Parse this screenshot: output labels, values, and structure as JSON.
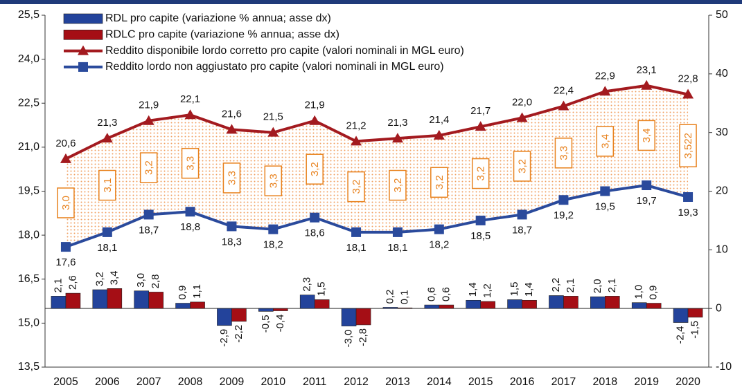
{
  "chart_data": {
    "type": "combo",
    "categories": [
      "2005",
      "2006",
      "2007",
      "2008",
      "2009",
      "2010",
      "2011",
      "2012",
      "2013",
      "2014",
      "2015",
      "2016",
      "2017",
      "2018",
      "2019",
      "2020"
    ],
    "ylim": [
      13.5,
      25.5
    ],
    "yticks": [
      {
        "value": 13.5,
        "label": "13,5"
      },
      {
        "value": 15,
        "label": "15,0"
      },
      {
        "value": 16.5,
        "label": "16,5"
      },
      {
        "value": 18,
        "label": "18,0"
      },
      {
        "value": 19.5,
        "label": "19,5"
      },
      {
        "value": 21,
        "label": "21,0"
      },
      {
        "value": 22.5,
        "label": "22,5"
      },
      {
        "value": 24,
        "label": "24,0"
      },
      {
        "value": 25.5,
        "label": "25,5"
      }
    ],
    "y2lim": [
      -10,
      50
    ],
    "y2ticks": [
      -10,
      0,
      10,
      20,
      30,
      40,
      50
    ],
    "legend": "upper left",
    "series": [
      {
        "name": "RDL pro capite (variazione % annua; asse dx)",
        "type": "bar",
        "axis": "y2",
        "color": "#23439b",
        "values": [
          2.1,
          3.2,
          3.0,
          0.9,
          -2.9,
          -0.5,
          2.3,
          -3.0,
          0.2,
          0.6,
          1.4,
          1.5,
          2.2,
          2.0,
          1.0,
          -2.4
        ],
        "value_labels": [
          "2,1",
          "3,2",
          "3,0",
          "0,9",
          "-2,9",
          "-0,5",
          "2,3",
          "-3,0",
          "0,2",
          "0,6",
          "1,4",
          "1,5",
          "2,2",
          "2,0",
          "1,0",
          "-2,4"
        ]
      },
      {
        "name": "RDLC pro capite (variazione % annua; asse dx)",
        "type": "bar",
        "axis": "y2",
        "color": "#a50e15",
        "values": [
          2.6,
          3.4,
          2.8,
          1.1,
          -2.2,
          -0.4,
          1.5,
          -2.8,
          0.1,
          0.6,
          1.2,
          1.4,
          2.1,
          2.1,
          0.9,
          -1.5
        ],
        "value_labels": [
          "2,6",
          "3,4",
          "2,8",
          "1,1",
          "-2,2",
          "-0,4",
          "1,5",
          "-2,8",
          "0,1",
          "0,6",
          "1,2",
          "1,4",
          "2,1",
          "2,1",
          "0,9",
          "-1,5"
        ]
      },
      {
        "name": "Reddito disponibile lordo corretto pro capite (valori nominali in MGL euro)",
        "type": "line",
        "marker": "triangle",
        "color": "#a31a1f",
        "values": [
          20.6,
          21.3,
          21.9,
          22.1,
          21.6,
          21.5,
          21.9,
          21.2,
          21.3,
          21.4,
          21.7,
          22.0,
          22.4,
          22.9,
          23.1,
          22.8
        ],
        "value_labels": [
          "20,6",
          "21,3",
          "21,9",
          "22,1",
          "21,6",
          "21,5",
          "21,9",
          "21,2",
          "21,3",
          "21,4",
          "21,7",
          "22,0",
          "22,4",
          "22,9",
          "23,1",
          "22,8"
        ]
      },
      {
        "name": "Reddito lordo non aggiustato pro capite (valori nominali in MGL euro)",
        "type": "line",
        "marker": "square",
        "color": "#2a4a9c",
        "values": [
          17.6,
          18.1,
          18.7,
          18.8,
          18.3,
          18.2,
          18.6,
          18.1,
          18.1,
          18.2,
          18.5,
          18.7,
          19.2,
          19.5,
          19.7,
          19.3
        ],
        "value_labels": [
          "17,6",
          "18,1",
          "18,7",
          "18,8",
          "18,3",
          "18,2",
          "18,6",
          "18,1",
          "18,1",
          "18,2",
          "18,5",
          "18,7",
          "19,2",
          "19,5",
          "19,7",
          "19,3"
        ]
      }
    ],
    "gap_values": [
      3.0,
      3.1,
      3.2,
      3.3,
      3.3,
      3.3,
      3.2,
      3.2,
      3.2,
      3.2,
      3.2,
      3.2,
      3.3,
      3.4,
      3.4,
      3.522
    ],
    "gap_labels": [
      "3,0",
      "3,1",
      "3,2",
      "3,3",
      "3,3",
      "3,3",
      "3,2",
      "3,2",
      "3,2",
      "3,2",
      "3,2",
      "3,2",
      "3,3",
      "3,4",
      "3,4",
      "3,522"
    ],
    "gap_color": "#e8821e"
  }
}
